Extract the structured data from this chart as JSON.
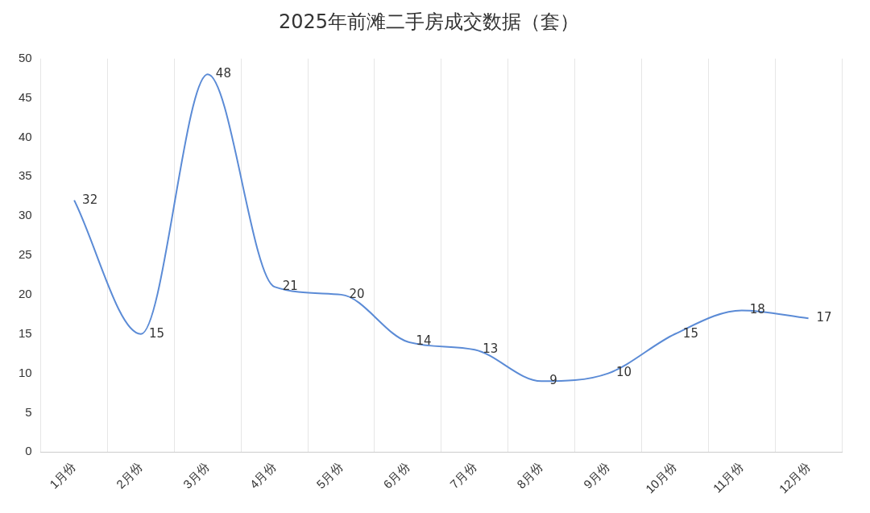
{
  "chart_data": {
    "type": "line",
    "title": "2025年前滩二手房成交数据（套）",
    "categories": [
      "1月份",
      "2月份",
      "3月份",
      "4月份",
      "5月份",
      "6月份",
      "7月份",
      "8月份",
      "9月份",
      "10月份",
      "11月份",
      "12月份"
    ],
    "series": [
      {
        "color": "#5b8bd6",
        "values": [
          32,
          15,
          48,
          21,
          20,
          14,
          13,
          9,
          10,
          15,
          18,
          17
        ]
      }
    ],
    "ylim": [
      0,
      50
    ],
    "yticks": [
      0,
      5,
      10,
      15,
      20,
      25,
      30,
      35,
      40,
      45,
      50
    ],
    "grid": "x",
    "legend": false,
    "marker": "none",
    "line_style": "solid",
    "data_labels": true
  }
}
